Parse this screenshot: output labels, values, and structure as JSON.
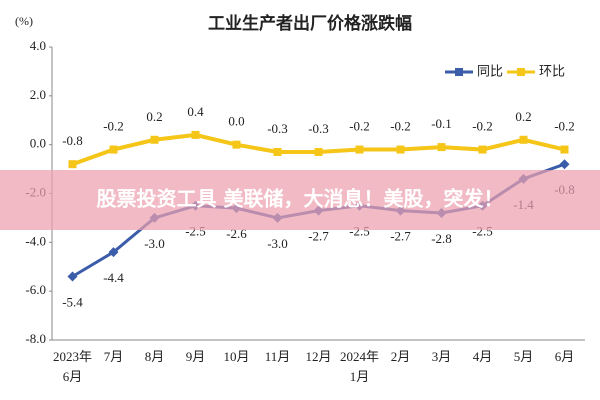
{
  "chart_data": {
    "type": "line",
    "title": "工业生产者出厂价格涨跌幅",
    "y_label": "(%)",
    "categories": [
      "2023年6月",
      "7月",
      "8月",
      "9月",
      "10月",
      "11月",
      "12月",
      "2024年1月",
      "2月",
      "3月",
      "4月",
      "5月",
      "6月"
    ],
    "series": [
      {
        "name": "同比",
        "color": "#3b5ca8",
        "marker": "diamond",
        "values": [
          -5.4,
          -4.4,
          -3.0,
          -2.5,
          -2.6,
          -3.0,
          -2.7,
          -2.5,
          -2.7,
          -2.8,
          -2.5,
          -1.4,
          -0.8
        ],
        "value_labels": [
          "-5.4",
          "-4.4",
          "-3.0",
          "-2.5",
          "-2.6",
          "-3.0",
          "-2.7",
          "-2.5",
          "-2.7",
          "-2.8",
          "-2.5",
          "-1.4",
          "-0.8"
        ]
      },
      {
        "name": "环比",
        "color": "#f5c518",
        "marker": "square",
        "values": [
          -0.8,
          -0.2,
          0.2,
          0.4,
          0.0,
          -0.3,
          -0.3,
          -0.2,
          -0.2,
          -0.1,
          -0.2,
          0.2,
          -0.2
        ],
        "value_labels": [
          "-0.8",
          "-0.2",
          "0.2",
          "0.4",
          "0.0",
          "-0.3",
          "-0.3",
          "-0.2",
          "-0.2",
          "-0.1",
          "-0.2",
          "0.2",
          "-0.2"
        ]
      }
    ],
    "ylim": [
      -8.0,
      4.0
    ],
    "yticks": [
      {
        "value": -8,
        "label": "-8.0"
      },
      {
        "value": -6,
        "label": "-6.0"
      },
      {
        "value": -4,
        "label": "-4.0"
      },
      {
        "value": -2,
        "label": "-2.0"
      },
      {
        "value": 0,
        "label": "0.0"
      },
      {
        "value": 2,
        "label": "2.0"
      },
      {
        "value": 4,
        "label": "4.0"
      }
    ],
    "grid": false,
    "legend": "top-right"
  },
  "banner": "股票投资工具 美联储，大消息！美股，突发！"
}
